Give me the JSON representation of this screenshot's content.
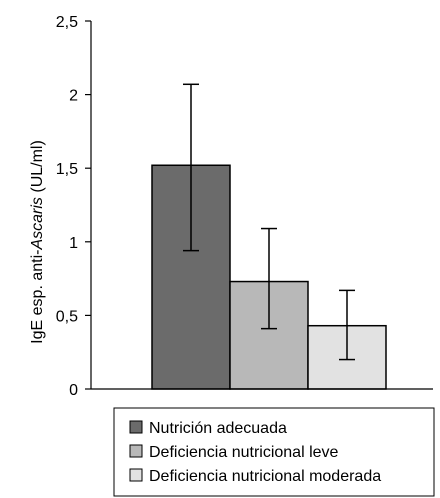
{
  "chart_data": {
    "type": "bar",
    "title": "",
    "xlabel": "",
    "ylabel": "IgE esp. anti-Ascaris (UL/ml)",
    "ylabel_parts": [
      "IgE esp. anti-",
      "Ascaris",
      " (UL/ml)"
    ],
    "ylim": [
      0,
      2.5
    ],
    "yticks": [
      0,
      0.5,
      1,
      1.5,
      2,
      2.5
    ],
    "ytick_labels": [
      "0",
      "0,5",
      "1",
      "1,5",
      "2",
      "2,5"
    ],
    "grid": false,
    "legend_position": "bottom",
    "series": [
      {
        "name": "Nutrición adecuada",
        "value": 1.52,
        "error_low": 0.94,
        "error_high": 2.07,
        "color": "#6b6b6b"
      },
      {
        "name": "Deficiencia nutricional leve",
        "value": 0.73,
        "error_low": 0.41,
        "error_high": 1.09,
        "color": "#b8b8b8"
      },
      {
        "name": "Deficiencia nutricional moderada",
        "value": 0.43,
        "error_low": 0.2,
        "error_high": 0.67,
        "color": "#e2e2e2"
      }
    ]
  }
}
